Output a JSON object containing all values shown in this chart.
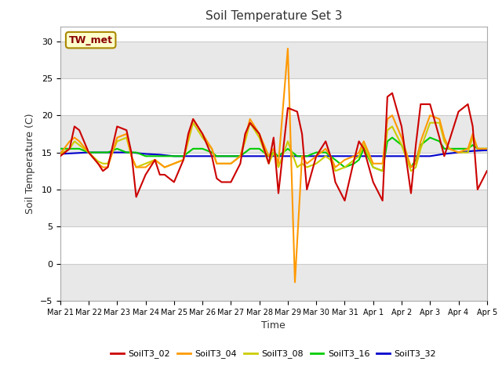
{
  "title": "Soil Temperature Set 3",
  "xlabel": "Time",
  "ylabel": "Soil Temperature (C)",
  "ylim": [
    -5,
    32
  ],
  "yticks": [
    -5,
    0,
    5,
    10,
    15,
    20,
    25,
    30
  ],
  "xlim": [
    0,
    15
  ],
  "xtick_labels": [
    "Mar 21",
    "Mar 22",
    "Mar 23",
    "Mar 24",
    "Mar 25",
    "Mar 26",
    "Mar 27",
    "Mar 28",
    "Mar 29",
    "Mar 30",
    "Mar 31",
    "Apr 1",
    "Apr 2",
    "Apr 3",
    "Apr 4",
    "Apr 5"
  ],
  "figure_bg": "#ffffff",
  "plot_bg": "#ffffff",
  "grid_color": "#e0e0e0",
  "annotation_label": "TW_met",
  "annotation_box_color": "#ffffcc",
  "annotation_text_color": "#880000",
  "series": {
    "SoilT3_02": {
      "color": "#cc0000",
      "x": [
        0,
        0.33,
        0.5,
        0.67,
        1.0,
        1.33,
        1.5,
        1.67,
        2.0,
        2.33,
        2.5,
        2.67,
        3.0,
        3.33,
        3.5,
        3.67,
        4.0,
        4.33,
        4.5,
        4.67,
        5.0,
        5.33,
        5.5,
        5.67,
        6.0,
        6.33,
        6.5,
        6.67,
        7.0,
        7.33,
        7.5,
        7.67,
        8.0,
        8.33,
        8.5,
        8.67,
        9.0,
        9.33,
        9.5,
        9.67,
        10.0,
        10.33,
        10.5,
        10.67,
        11.0,
        11.33,
        11.5,
        11.67,
        12.0,
        12.33,
        12.5,
        12.67,
        13.0,
        13.33,
        13.5,
        13.67,
        14.0,
        14.33,
        14.5,
        14.67,
        15.0
      ],
      "y": [
        14.5,
        15.5,
        18.5,
        18.0,
        15.0,
        13.5,
        12.5,
        13.0,
        18.5,
        18.0,
        15.0,
        9.0,
        12.0,
        14.0,
        12.0,
        12.0,
        11.0,
        14.0,
        17.5,
        19.5,
        17.5,
        14.5,
        11.5,
        11.0,
        11.0,
        13.5,
        17.5,
        19.0,
        17.5,
        13.5,
        17.0,
        9.5,
        21.0,
        20.5,
        17.5,
        10.0,
        14.5,
        16.5,
        14.5,
        11.0,
        8.5,
        14.0,
        16.5,
        15.5,
        11.0,
        8.5,
        22.5,
        23.0,
        18.5,
        9.5,
        16.0,
        21.5,
        21.5,
        17.0,
        14.5,
        16.5,
        20.5,
        21.5,
        18.5,
        10.0,
        12.5
      ]
    },
    "SoilT3_04": {
      "color": "#ff9900",
      "x": [
        0,
        0.33,
        0.5,
        0.67,
        1.0,
        1.33,
        1.5,
        1.67,
        2.0,
        2.33,
        2.5,
        2.67,
        3.0,
        3.33,
        3.5,
        3.67,
        4.0,
        4.33,
        4.5,
        4.67,
        5.0,
        5.33,
        5.5,
        5.67,
        6.0,
        6.33,
        6.5,
        6.67,
        7.0,
        7.33,
        7.5,
        7.67,
        8.0,
        8.25,
        8.5,
        8.67,
        9.0,
        9.33,
        9.5,
        9.67,
        10.0,
        10.33,
        10.5,
        10.67,
        11.0,
        11.33,
        11.5,
        11.67,
        12.0,
        12.33,
        12.5,
        12.67,
        13.0,
        13.33,
        13.5,
        13.67,
        14.0,
        14.33,
        14.5,
        14.67,
        15.0
      ],
      "y": [
        14.8,
        16.5,
        17.0,
        16.5,
        15.0,
        13.5,
        13.0,
        13.0,
        17.0,
        17.5,
        14.5,
        13.0,
        13.0,
        14.0,
        13.5,
        13.0,
        13.5,
        14.0,
        17.0,
        19.5,
        17.5,
        15.5,
        13.5,
        13.5,
        13.5,
        14.5,
        17.0,
        19.5,
        17.5,
        14.5,
        15.5,
        13.5,
        29.0,
        -2.5,
        14.5,
        13.5,
        14.5,
        15.5,
        14.5,
        13.0,
        14.0,
        14.5,
        15.0,
        16.5,
        13.5,
        13.5,
        19.5,
        20.0,
        17.0,
        13.0,
        13.5,
        16.5,
        20.0,
        19.5,
        17.0,
        15.5,
        15.0,
        15.5,
        17.5,
        15.5,
        15.5
      ]
    },
    "SoilT3_08": {
      "color": "#cccc00",
      "x": [
        0,
        0.33,
        0.5,
        0.67,
        1.0,
        1.33,
        1.5,
        1.67,
        2.0,
        2.33,
        2.5,
        2.67,
        3.0,
        3.33,
        3.5,
        3.67,
        4.0,
        4.33,
        4.5,
        4.67,
        5.0,
        5.33,
        5.5,
        5.67,
        6.0,
        6.33,
        6.5,
        6.67,
        7.0,
        7.33,
        7.5,
        7.67,
        8.0,
        8.33,
        8.5,
        8.67,
        9.0,
        9.33,
        9.5,
        9.67,
        10.0,
        10.33,
        10.5,
        10.67,
        11.0,
        11.33,
        11.5,
        11.67,
        12.0,
        12.33,
        12.5,
        12.67,
        13.0,
        13.33,
        13.5,
        13.67,
        14.0,
        14.33,
        14.5,
        14.67,
        15.0
      ],
      "y": [
        14.8,
        15.5,
        16.5,
        16.0,
        15.0,
        13.8,
        13.5,
        13.5,
        16.5,
        17.0,
        14.5,
        13.0,
        13.5,
        14.0,
        13.5,
        13.0,
        13.5,
        14.0,
        16.5,
        19.0,
        17.0,
        15.5,
        13.5,
        13.5,
        13.5,
        14.5,
        16.5,
        19.0,
        17.0,
        13.5,
        15.0,
        13.0,
        16.5,
        13.0,
        13.5,
        13.0,
        13.5,
        14.5,
        14.0,
        12.5,
        13.0,
        14.0,
        14.5,
        16.0,
        13.0,
        12.5,
        18.0,
        18.5,
        16.0,
        12.5,
        13.0,
        15.5,
        19.0,
        19.0,
        16.5,
        15.5,
        15.0,
        15.0,
        17.0,
        15.5,
        15.5
      ]
    },
    "SoilT3_16": {
      "color": "#00cc00",
      "x": [
        0,
        0.33,
        0.5,
        0.67,
        1.0,
        1.33,
        1.5,
        1.67,
        2.0,
        2.33,
        2.5,
        2.67,
        3.0,
        3.33,
        3.5,
        3.67,
        4.0,
        4.33,
        4.5,
        4.67,
        5.0,
        5.33,
        5.5,
        5.67,
        6.0,
        6.33,
        6.5,
        6.67,
        7.0,
        7.33,
        7.5,
        7.67,
        8.0,
        8.33,
        8.5,
        8.67,
        9.0,
        9.33,
        9.5,
        9.67,
        10.0,
        10.33,
        10.5,
        10.67,
        11.0,
        11.33,
        11.5,
        11.67,
        12.0,
        12.33,
        12.5,
        12.67,
        13.0,
        13.33,
        13.5,
        13.67,
        14.0,
        14.33,
        14.5,
        14.67,
        15.0
      ],
      "y": [
        15.5,
        15.5,
        15.5,
        15.5,
        15.0,
        15.0,
        15.0,
        15.0,
        15.5,
        15.0,
        15.0,
        15.0,
        14.5,
        14.5,
        14.5,
        14.5,
        14.5,
        14.5,
        15.0,
        15.5,
        15.5,
        15.0,
        14.5,
        14.5,
        14.5,
        14.5,
        15.0,
        15.5,
        15.5,
        14.5,
        15.0,
        14.5,
        15.5,
        14.5,
        14.5,
        14.5,
        15.0,
        15.0,
        14.5,
        14.0,
        13.0,
        13.5,
        14.0,
        15.5,
        13.0,
        12.5,
        16.5,
        17.0,
        16.0,
        13.0,
        14.0,
        16.0,
        17.0,
        16.5,
        15.5,
        15.5,
        15.5,
        15.5,
        16.0,
        15.5,
        15.5
      ]
    },
    "SoilT3_32": {
      "color": "#0000cc",
      "x": [
        0,
        0.5,
        1.0,
        1.5,
        2.0,
        2.5,
        3.0,
        3.5,
        4.0,
        4.5,
        5.0,
        5.5,
        6.0,
        6.5,
        7.0,
        7.5,
        8.0,
        8.5,
        9.0,
        9.5,
        10.0,
        10.5,
        11.0,
        11.5,
        12.0,
        12.5,
        13.0,
        13.5,
        14.0,
        14.5,
        15.0
      ],
      "y": [
        14.8,
        14.9,
        15.0,
        15.0,
        15.0,
        15.0,
        14.8,
        14.7,
        14.5,
        14.5,
        14.5,
        14.5,
        14.5,
        14.5,
        14.5,
        14.5,
        14.5,
        14.5,
        14.5,
        14.5,
        14.5,
        14.5,
        14.5,
        14.5,
        14.5,
        14.5,
        14.5,
        14.8,
        15.0,
        15.2,
        15.3
      ]
    }
  },
  "legend": [
    {
      "label": "SoilT3_02",
      "color": "#cc0000"
    },
    {
      "label": "SoilT3_04",
      "color": "#ff9900"
    },
    {
      "label": "SoilT3_08",
      "color": "#cccc00"
    },
    {
      "label": "SoilT3_16",
      "color": "#00cc00"
    },
    {
      "label": "SoilT3_32",
      "color": "#0000cc"
    }
  ]
}
